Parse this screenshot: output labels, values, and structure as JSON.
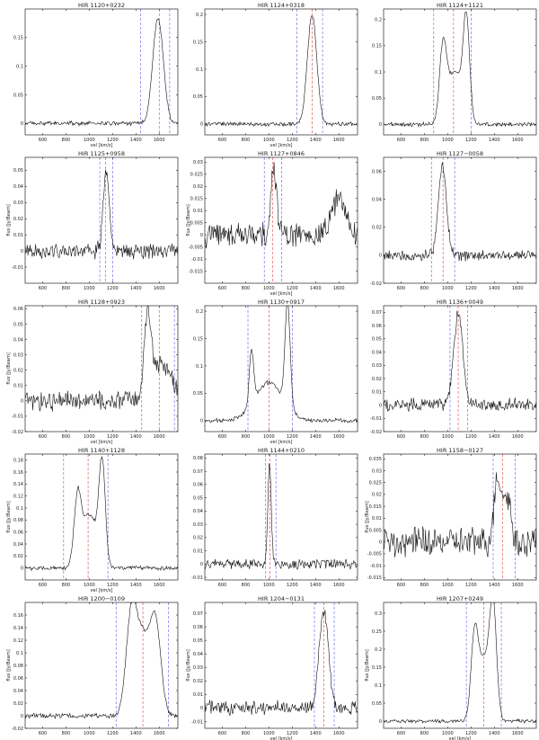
{
  "chart_data": [
    {
      "type": "line",
      "title": "HIR 1120+0232",
      "xlabel": "vel [km/s]",
      "ylabel": "",
      "xlim": [
        450,
        1760
      ],
      "ylim": [
        -0.02,
        0.2
      ],
      "xticks": [
        600,
        800,
        1000,
        1200,
        1400,
        1600
      ],
      "yticks": [
        0,
        0.05,
        0.1,
        0.15
      ],
      "ytick_labels": [
        "0",
        "0.05",
        "0.1",
        "0.15"
      ],
      "vlines_blue": [
        1440,
        1690
      ],
      "vlines_red": [
        1600
      ],
      "noise": 0.003,
      "base": 0,
      "peaks": [
        {
          "c": 1590,
          "a": 0.185,
          "w": 45
        }
      ]
    },
    {
      "type": "line",
      "title": "HIR 1124+0318",
      "xlabel": "vel [km/s]",
      "ylabel": "",
      "xlim": [
        450,
        1760
      ],
      "ylim": [
        -0.02,
        0.21
      ],
      "xticks": [
        600,
        800,
        1000,
        1200,
        1400,
        1600
      ],
      "yticks": [
        0,
        0.05,
        0.1,
        0.15,
        0.2
      ],
      "ytick_labels": [
        "0",
        "0.05",
        "0.1",
        "0.15",
        "0.2"
      ],
      "vlines_blue": [
        1240,
        1460
      ],
      "vlines_red": [
        1370
      ],
      "noise": 0.003,
      "base": 0,
      "peaks": [
        {
          "c": 1370,
          "a": 0.2,
          "w": 40
        }
      ]
    },
    {
      "type": "line",
      "title": "HIR 1124+1121",
      "xlabel": "",
      "ylabel": "",
      "xlim": [
        450,
        1760
      ],
      "ylim": [
        -0.02,
        0.22
      ],
      "xticks": [
        600,
        800,
        1000,
        1200,
        1400,
        1600
      ],
      "yticks": [
        0,
        0.05,
        0.1,
        0.15,
        0.2
      ],
      "ytick_labels": [
        "0",
        "0.05",
        "0.1",
        "0.15",
        "0.2"
      ],
      "vlines_blue": [
        880,
        1200
      ],
      "vlines_red": [
        1050
      ],
      "noise": 0.003,
      "base": 0,
      "peaks": [
        {
          "c": 960,
          "a": 0.14,
          "w": 30
        },
        {
          "c": 1060,
          "a": 0.1,
          "w": 60
        },
        {
          "c": 1160,
          "a": 0.19,
          "w": 28
        }
      ]
    },
    {
      "type": "line",
      "title": "HIR 1125+0958",
      "xlabel": "",
      "ylabel": "flux [Jy/Beam]",
      "xlim": [
        450,
        1760
      ],
      "ylim": [
        -0.02,
        0.058
      ],
      "xticks": [
        600,
        800,
        1000,
        1200,
        1400,
        1600
      ],
      "yticks": [
        -0.01,
        0,
        0.01,
        0.02,
        0.03,
        0.04,
        0.05
      ],
      "ytick_labels": [
        "-0.01",
        "0",
        "0.01",
        "0.02",
        "0.03",
        "0.04",
        "0.05"
      ],
      "vlines_blue": [
        1090,
        1200
      ],
      "vlines_red": [
        1140
      ],
      "noise": 0.004,
      "base": 0,
      "peaks": [
        {
          "c": 1145,
          "a": 0.052,
          "w": 25
        }
      ]
    },
    {
      "type": "line",
      "title": "HIR 1127+0846",
      "xlabel": "vel [km/s]",
      "ylabel": "flux [Jy/Beam]",
      "xlim": [
        450,
        1760
      ],
      "ylim": [
        -0.02,
        0.032
      ],
      "xticks": [
        600,
        800,
        1000,
        1200,
        1400,
        1600
      ],
      "yticks": [
        -0.015,
        -0.01,
        -0.005,
        0,
        0.005,
        0.01,
        0.015,
        0.02,
        0.025,
        0.03
      ],
      "ytick_labels": [
        "-0.015",
        "-0.01",
        "-0.005",
        "0",
        "0.005",
        "0.01",
        "0.015",
        "0.02",
        "0.025",
        "0.03"
      ],
      "vlines_blue": [
        960,
        1110
      ],
      "vlines_red": [
        1030
      ],
      "noise": 0.004,
      "base": 0,
      "peaks": [
        {
          "c": 1040,
          "a": 0.028,
          "w": 25
        },
        {
          "c": 1600,
          "a": 0.015,
          "w": 60
        }
      ]
    },
    {
      "type": "line",
      "title": "HIR 1127−0058",
      "xlabel": "",
      "ylabel": "",
      "xlim": [
        450,
        1760
      ],
      "ylim": [
        -0.02,
        0.07
      ],
      "xticks": [
        600,
        800,
        1000,
        1200,
        1400,
        1600
      ],
      "yticks": [
        -0.02,
        0,
        0.02,
        0.04,
        0.06
      ],
      "ytick_labels": [
        "-0.02",
        "0",
        "0.02",
        "0.04",
        "0.06"
      ],
      "vlines_blue": [
        860,
        1060
      ],
      "vlines_red": [
        960
      ],
      "noise": 0.003,
      "base": 0,
      "peaks": [
        {
          "c": 955,
          "a": 0.063,
          "w": 35
        }
      ]
    },
    {
      "type": "line",
      "title": "HIR 1128+0923",
      "xlabel": "vel [km/s]",
      "ylabel": "flux [Jy/Beam]",
      "xlim": [
        450,
        1760
      ],
      "ylim": [
        -0.02,
        0.062
      ],
      "xticks": [
        600,
        800,
        1000,
        1200,
        1400,
        1600
      ],
      "yticks": [
        -0.02,
        -0.01,
        0,
        0.01,
        0.02,
        0.03,
        0.04,
        0.05,
        0.06
      ],
      "ytick_labels": [
        "-0.02",
        "-0.01",
        "0",
        "0.01",
        "0.02",
        "0.03",
        "0.04",
        "0.05",
        "0.06"
      ],
      "vlines_blue": [
        1450,
        1730
      ],
      "vlines_red": [
        1600
      ],
      "noise": 0.005,
      "base": 0,
      "peaks": [
        {
          "c": 1500,
          "a": 0.05,
          "w": 30
        },
        {
          "c": 1620,
          "a": 0.025,
          "w": 80
        }
      ]
    },
    {
      "type": "line",
      "title": "HIR 1130+0917",
      "xlabel": "vel [km/s]",
      "ylabel": "",
      "xlim": [
        450,
        1760
      ],
      "ylim": [
        -0.02,
        0.21
      ],
      "xticks": [
        600,
        800,
        1000,
        1200,
        1400,
        1600
      ],
      "yticks": [
        0,
        0.05,
        0.1,
        0.15,
        0.2
      ],
      "ytick_labels": [
        "0",
        "0.05",
        "0.1",
        "0.15",
        "0.2"
      ],
      "vlines_blue": [
        820,
        1200
      ],
      "vlines_red": [
        1000
      ],
      "noise": 0.003,
      "base": 0,
      "peaks": [
        {
          "c": 850,
          "a": 0.1,
          "w": 18
        },
        {
          "c": 1000,
          "a": 0.07,
          "w": 120
        },
        {
          "c": 1160,
          "a": 0.19,
          "w": 22
        }
      ]
    },
    {
      "type": "line",
      "title": "HIR 1136+0049",
      "xlabel": "",
      "ylabel": "",
      "xlim": [
        450,
        1760
      ],
      "ylim": [
        -0.02,
        0.075
      ],
      "xticks": [
        600,
        800,
        1000,
        1200,
        1400,
        1600
      ],
      "yticks": [
        -0.02,
        -0.01,
        0,
        0.01,
        0.02,
        0.03,
        0.04,
        0.05,
        0.06,
        0.07
      ],
      "ytick_labels": [
        "-0.02",
        "-0.01",
        "0",
        "0.01",
        "0.02",
        "0.03",
        "0.04",
        "0.05",
        "0.06",
        "0.07"
      ],
      "vlines_blue": [
        1020,
        1170
      ],
      "vlines_red": [
        1090
      ],
      "noise": 0.004,
      "base": 0,
      "peaks": [
        {
          "c": 1090,
          "a": 0.068,
          "w": 40
        }
      ]
    },
    {
      "type": "line",
      "title": "HIR 1140+1128",
      "xlabel": "vel [km/s]",
      "ylabel": "flux [Jy/Beam]",
      "xlim": [
        450,
        1760
      ],
      "ylim": [
        -0.02,
        0.19
      ],
      "xticks": [
        600,
        800,
        1000,
        1200,
        1400,
        1600
      ],
      "yticks": [
        0,
        0.02,
        0.04,
        0.06,
        0.08,
        0.1,
        0.12,
        0.14,
        0.16,
        0.18
      ],
      "ytick_labels": [
        "0",
        "0.02",
        "0.04",
        "0.06",
        "0.08",
        "0.1",
        "0.12",
        "0.14",
        "0.16",
        "0.18"
      ],
      "vlines_blue": [
        780,
        1160
      ],
      "vlines_red": [
        990
      ],
      "noise": 0.003,
      "base": 0,
      "peaks": [
        {
          "c": 900,
          "a": 0.11,
          "w": 30
        },
        {
          "c": 1000,
          "a": 0.09,
          "w": 60
        },
        {
          "c": 1110,
          "a": 0.17,
          "w": 28
        }
      ]
    },
    {
      "type": "line",
      "title": "HIR 1144+0210",
      "xlabel": "",
      "ylabel": "",
      "xlim": [
        450,
        1760
      ],
      "ylim": [
        -0.012,
        0.083
      ],
      "xticks": [
        600,
        800,
        1000,
        1200,
        1400,
        1600
      ],
      "yticks": [
        -0.01,
        0,
        0.01,
        0.02,
        0.03,
        0.04,
        0.05,
        0.06,
        0.07,
        0.08
      ],
      "ytick_labels": [
        "-0.01",
        "0",
        "0.01",
        "0.02",
        "0.03",
        "0.04",
        "0.05",
        "0.06",
        "0.07",
        "0.08"
      ],
      "vlines_blue": [
        970,
        1060
      ],
      "vlines_red": [
        1010
      ],
      "noise": 0.003,
      "base": 0,
      "peaks": [
        {
          "c": 1005,
          "a": 0.075,
          "w": 15
        }
      ]
    },
    {
      "type": "line",
      "title": "HIR 1158−0127",
      "xlabel": "",
      "ylabel": "flux [Jy/Beam]",
      "xlim": [
        450,
        1760
      ],
      "ylim": [
        -0.016,
        0.037
      ],
      "xticks": [
        600,
        800,
        1000,
        1200,
        1400,
        1600
      ],
      "yticks": [
        -0.015,
        -0.01,
        -0.005,
        0,
        0.005,
        0.01,
        0.015,
        0.02,
        0.025,
        0.03,
        0.035
      ],
      "ytick_labels": [
        "-0.015",
        "-0.01",
        "-0.005",
        "0",
        "0.005",
        "0.01",
        "0.015",
        "0.02",
        "0.025",
        "0.03",
        "0.035"
      ],
      "vlines_blue": [
        1390,
        1580
      ],
      "vlines_red": [
        1470
      ],
      "noise": 0.005,
      "base": 0,
      "peaks": [
        {
          "c": 1430,
          "a": 0.028,
          "w": 30
        },
        {
          "c": 1510,
          "a": 0.02,
          "w": 30
        }
      ]
    },
    {
      "type": "line",
      "title": "HIR 1200−0109",
      "xlabel": "",
      "ylabel": "flux [Jy/Beam]",
      "xlim": [
        450,
        1760
      ],
      "ylim": [
        -0.02,
        0.18
      ],
      "xticks": [
        600,
        800,
        1000,
        1200,
        1400,
        1600
      ],
      "yticks": [
        -0.02,
        0,
        0.02,
        0.04,
        0.06,
        0.08,
        0.1,
        0.12,
        0.14,
        0.16
      ],
      "ytick_labels": [
        "-0.02",
        "0",
        "0.02",
        "0.04",
        "0.06",
        "0.08",
        "0.1",
        "0.12",
        "0.14",
        "0.16"
      ],
      "vlines_blue": [
        1230,
        1680
      ],
      "vlines_red": [
        1460
      ],
      "noise": 0.003,
      "base": 0,
      "peaks": [
        {
          "c": 1360,
          "a": 0.15,
          "w": 45
        },
        {
          "c": 1460,
          "a": 0.12,
          "w": 60
        },
        {
          "c": 1570,
          "a": 0.14,
          "w": 45
        }
      ]
    },
    {
      "type": "line",
      "title": "HIR 1204−0131",
      "xlabel": "vel [km/s]",
      "ylabel": "flux [Jy/Beam]",
      "xlim": [
        450,
        1760
      ],
      "ylim": [
        -0.015,
        0.078
      ],
      "xticks": [
        600,
        800,
        1000,
        1200,
        1400,
        1600
      ],
      "yticks": [
        -0.01,
        0,
        0.01,
        0.02,
        0.03,
        0.04,
        0.05,
        0.06,
        0.07
      ],
      "ytick_labels": [
        "-0.01",
        "0",
        "0.01",
        "0.02",
        "0.03",
        "0.04",
        "0.05",
        "0.06",
        "0.07"
      ],
      "vlines_blue": [
        1390,
        1560
      ],
      "vlines_red": [
        1470
      ],
      "noise": 0.004,
      "base": 0,
      "peaks": [
        {
          "c": 1470,
          "a": 0.072,
          "w": 40
        }
      ]
    },
    {
      "type": "line",
      "title": "HIR 1207+0249",
      "xlabel": "vel [km/s]",
      "ylabel": "flux [Jy/Beam]",
      "xlim": [
        450,
        1760
      ],
      "ylim": [
        -0.02,
        0.33
      ],
      "xticks": [
        600,
        800,
        1000,
        1200,
        1400,
        1600
      ],
      "yticks": [
        0,
        0.05,
        0.1,
        0.15,
        0.2,
        0.25,
        0.3
      ],
      "ytick_labels": [
        "0",
        "0.05",
        "0.1",
        "0.15",
        "0.2",
        "0.25",
        "0.3"
      ],
      "vlines_blue": [
        1160,
        1460
      ],
      "vlines_red": [
        1310
      ],
      "noise": 0.004,
      "base": 0,
      "peaks": [
        {
          "c": 1230,
          "a": 0.22,
          "w": 30
        },
        {
          "c": 1310,
          "a": 0.17,
          "w": 50
        },
        {
          "c": 1390,
          "a": 0.3,
          "w": 30
        }
      ]
    }
  ]
}
